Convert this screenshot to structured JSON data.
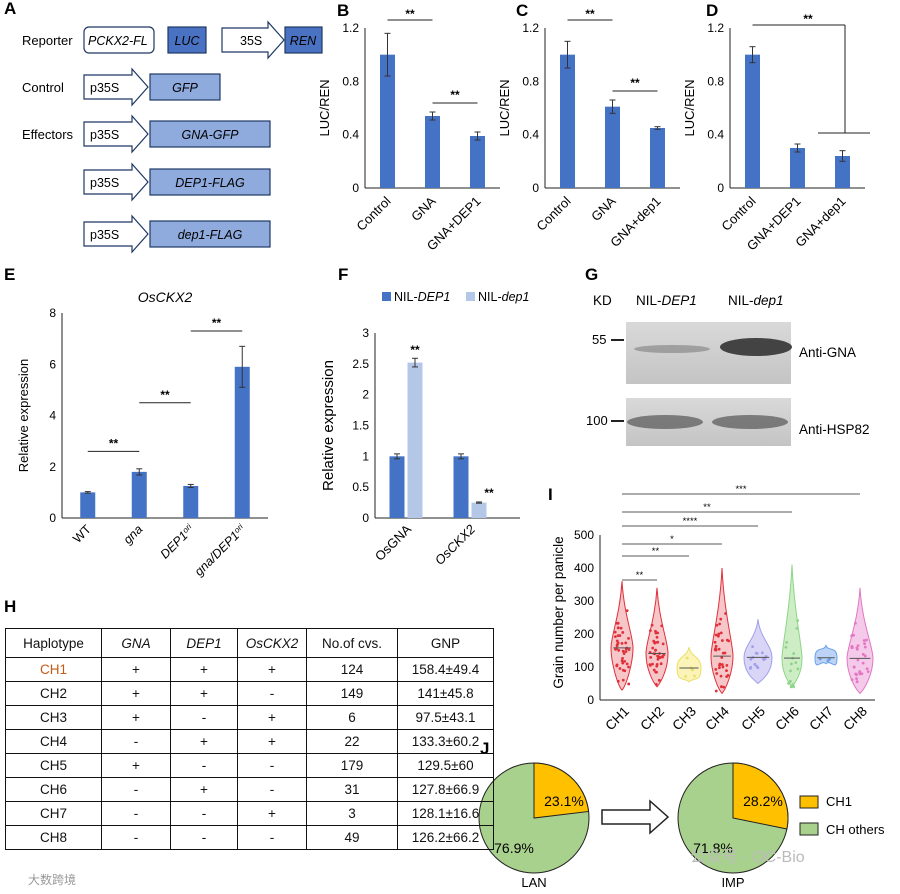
{
  "panels": {
    "A": "A",
    "B": "B",
    "C": "C",
    "D": "D",
    "E": "E",
    "F": "F",
    "G": "G",
    "H": "H",
    "I": "I",
    "J": "J"
  },
  "panelA": {
    "rows": [
      {
        "label": "Reporter",
        "boxes": [
          "PCKX2-FL",
          "LUC",
          "35S",
          "REN"
        ]
      },
      {
        "label": "Control",
        "boxes": [
          "p35S",
          "GFP"
        ]
      },
      {
        "label": "Effectors",
        "boxes": [
          "p35S",
          "GNA-GFP"
        ]
      },
      {
        "label": "",
        "boxes": [
          "p35S",
          "DEP1-FLAG"
        ]
      },
      {
        "label": "",
        "boxes": [
          "p35S",
          "dep1-FLAG"
        ]
      }
    ]
  },
  "colors": {
    "bar": "#4472c4",
    "bar_light": "#b4c7e7",
    "box_fill": "#8faadc",
    "box_dark": "#2f5597",
    "pie_green": "#a9d18e",
    "pie_yellow": "#ffc000",
    "violin_red": "#e0303a",
    "violin_pink": "#e377c2"
  },
  "chart_data": [
    {
      "id": "B",
      "type": "bar",
      "ylabel": "LUC/REN",
      "yticks": [
        "0",
        "0.4",
        "0.8",
        "1.2"
      ],
      "ylim": [
        0,
        1.2
      ],
      "categories": [
        "Control",
        "GNA",
        "GNA+DEP1"
      ],
      "values": [
        1.0,
        0.54,
        0.39
      ],
      "errors": [
        0.16,
        0.03,
        0.03
      ],
      "sig": [
        "**",
        "**"
      ]
    },
    {
      "id": "C",
      "type": "bar",
      "ylabel": "LUC/REN",
      "yticks": [
        "0",
        "0.4",
        "0.8",
        "1.2"
      ],
      "ylim": [
        0,
        1.2
      ],
      "categories": [
        "Control",
        "GNA",
        "GNA+dep1"
      ],
      "values": [
        1.0,
        0.61,
        0.45
      ],
      "errors": [
        0.1,
        0.05,
        0.01
      ],
      "sig": [
        "**",
        "**"
      ]
    },
    {
      "id": "D",
      "type": "bar",
      "ylabel": "LUC/REN",
      "yticks": [
        "0",
        "0.4",
        "0.8",
        "1.2"
      ],
      "ylim": [
        0,
        1.2
      ],
      "categories": [
        "Control",
        "GNA+DEP1",
        "GNA+dep1"
      ],
      "values": [
        1.0,
        0.3,
        0.24
      ],
      "errors": [
        0.06,
        0.03,
        0.04
      ],
      "sig": [
        "**"
      ]
    },
    {
      "id": "E",
      "type": "bar",
      "title": "OsCKX2",
      "ylabel": "Relative expression",
      "yticks": [
        "0",
        "2",
        "4",
        "6",
        "8"
      ],
      "ylim": [
        0,
        8
      ],
      "categories": [
        "WT",
        "gna",
        "DEP1ori",
        "gna/DEP1ori"
      ],
      "category_labels": [
        {
          "base": "WT",
          "sup": ""
        },
        {
          "base": "gna",
          "sup": ""
        },
        {
          "base": "DEP1",
          "sup": "ori"
        },
        {
          "base": "gna/DEP1",
          "sup": "ori"
        }
      ],
      "values": [
        1.0,
        1.8,
        1.25,
        5.9
      ],
      "errors": [
        0.03,
        0.12,
        0.06,
        0.8
      ],
      "sig": [
        "**",
        "**",
        "**"
      ]
    },
    {
      "id": "F",
      "type": "bar",
      "ylabel": "Relative expression",
      "yticks": [
        "0",
        "0.5",
        "1",
        "1.5",
        "2",
        "2.5",
        "3"
      ],
      "ylim": [
        0,
        3
      ],
      "categories": [
        "OsGNA",
        "OsCKX2"
      ],
      "series": [
        {
          "name": "NIL-DEP1",
          "prefix": "NIL-",
          "gene": "DEP1",
          "values": [
            1.0,
            1.0
          ],
          "errors": [
            0.04,
            0.04
          ]
        },
        {
          "name": "NIL-dep1",
          "prefix": "NIL-",
          "gene": "dep1",
          "values": [
            2.52,
            0.25
          ],
          "errors": [
            0.07,
            0.01
          ]
        }
      ],
      "sig": [
        "**",
        "**"
      ]
    },
    {
      "id": "I",
      "type": "violin",
      "ylabel": "Grain number per panicle",
      "yticks": [
        "0",
        "100",
        "200",
        "300",
        "400",
        "500"
      ],
      "ylim": [
        0,
        500
      ],
      "categories": [
        "CH1",
        "CH2",
        "CH3",
        "CH4",
        "CH5",
        "CH6",
        "CH7",
        "CH8"
      ],
      "medians": [
        158,
        141,
        97,
        133,
        129,
        127,
        128,
        126
      ],
      "sig": [
        "**",
        "**",
        "*",
        "****",
        "**",
        "***"
      ]
    },
    {
      "id": "J",
      "type": "pie",
      "pies": [
        {
          "label": "LAN",
          "slices": [
            {
              "name": "CH1",
              "value": 23.1,
              "label": "23.1%"
            },
            {
              "name": "CH others",
              "value": 76.9,
              "label": "76.9%"
            }
          ]
        },
        {
          "label": "IMP",
          "slices": [
            {
              "name": "CH1",
              "value": 28.2,
              "label": "28.2%"
            },
            {
              "name": "CH others",
              "value": 71.8,
              "label": "71.8%"
            }
          ]
        }
      ],
      "legend": [
        "CH1",
        "CH others"
      ]
    }
  ],
  "panelG": {
    "kd": "KD",
    "lanes": [
      {
        "prefix": "NIL-",
        "gene": "DEP1"
      },
      {
        "prefix": "NIL-",
        "gene": "dep1"
      }
    ],
    "markers": [
      "55",
      "100"
    ],
    "antibodies": [
      "Anti-GNA",
      "Anti-HSP82"
    ]
  },
  "table": {
    "headers": [
      "Haplotype",
      "GNA",
      "DEP1",
      "OsCKX2",
      "No.of cvs.",
      "GNP"
    ],
    "rows": [
      [
        "CH1",
        "+",
        "+",
        "+",
        "124",
        "158.4±49.4"
      ],
      [
        "CH2",
        "+",
        "+",
        "-",
        "149",
        "141±45.8"
      ],
      [
        "CH3",
        "+",
        "-",
        "+",
        "6",
        "97.5±43.1"
      ],
      [
        "CH4",
        "-",
        "+",
        "+",
        "22",
        "133.3±60.2"
      ],
      [
        "CH5",
        "+",
        "-",
        "-",
        "179",
        "129.5±60"
      ],
      [
        "CH6",
        "-",
        "+",
        "-",
        "31",
        "127.8±66.9"
      ],
      [
        "CH7",
        "-",
        "-",
        "+",
        "3",
        "128.1±16.6"
      ],
      [
        "CH8",
        "-",
        "-",
        "-",
        "49",
        "126.2±66.2"
      ]
    ],
    "ch1_color": "#c55a11"
  },
  "watermark": {
    "left": "大数跨境",
    "right": "公众号 · OC-Bio"
  }
}
